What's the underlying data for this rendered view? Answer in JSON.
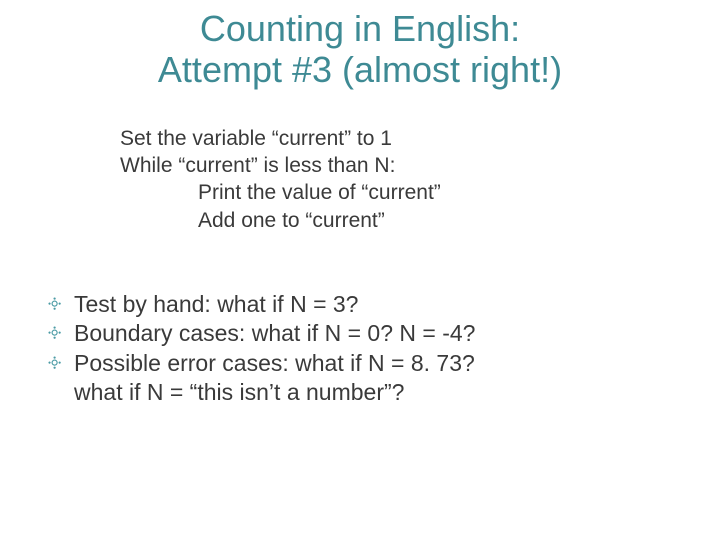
{
  "colors": {
    "title": "#3e8a94",
    "body": "#3a3a3a",
    "bullet": "#4a9aa4",
    "background": "#ffffff"
  },
  "typography": {
    "title_fontsize": 36,
    "body_fontsize": 21,
    "bullet_fontsize": 23,
    "font_family": "Arial"
  },
  "title": {
    "line1": "Counting in English:",
    "line2": "Attempt #3 (almost right!)"
  },
  "pseudocode": {
    "l1": "Set the variable “current” to 1",
    "l2": "While “current” is less than N:",
    "l3": "Print the value of “current”",
    "l4": "Add one to “current”"
  },
  "bullets": {
    "b1": "Test by hand:  what if N = 3?",
    "b2": "Boundary cases:  what if N = 0?  N = -4?",
    "b3": "Possible error cases:  what if N = 8. 73?",
    "b3_cont": "what if N = “this isn’t a number”?"
  },
  "bullet_glyph": "༓"
}
